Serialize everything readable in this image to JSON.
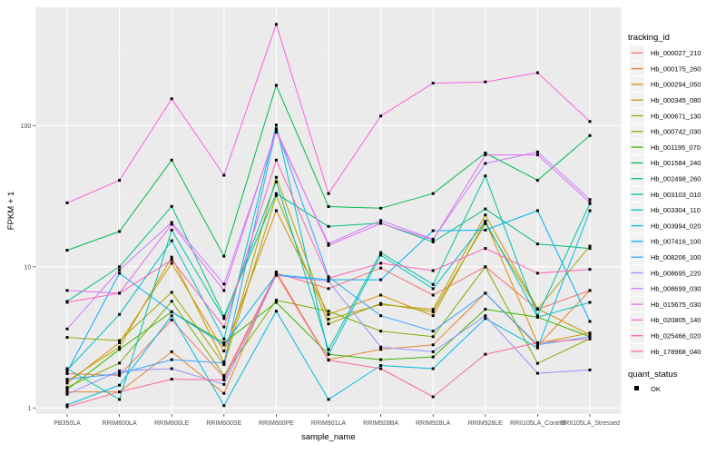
{
  "figure": {
    "background": "#FFFFFF",
    "panel_bg": "#EBEBEB",
    "grid_major_color": "#FFFFFF",
    "grid_minor_color": "#F5F5F5",
    "tick_color": "#333333",
    "tick_text_color": "#4D4D4D",
    "point_color": "#000000",
    "legend_key_bg": "#F2F2F2"
  },
  "axes": {
    "x_title": "sample_name",
    "y_title": "FPKM + 1",
    "y_ticks": [
      {
        "label": "1",
        "value": 1
      },
      {
        "label": "10",
        "value": 10
      },
      {
        "label": "100",
        "value": 100
      }
    ],
    "y_minor_values": [
      3.162,
      31.62,
      316.2
    ]
  },
  "legend": {
    "tracking_title": "tracking_id",
    "quant_title": "quant_status",
    "quant_items": [
      {
        "label": "OK",
        "shape": "square",
        "color": "#000000"
      }
    ]
  },
  "chart_data": {
    "type": "line",
    "title": "",
    "xlabel": "sample_name",
    "ylabel": "FPKM + 1",
    "y_scale": "log10",
    "ylim": [
      0.91,
      690
    ],
    "grid": true,
    "legend_position": "right",
    "point_shape": "filled-square-black",
    "categories": [
      "PB350LA",
      "RRIM600LA",
      "RRIM600LE",
      "RRIM600SE",
      "RRIM600PE",
      "RRIM901LA",
      "RRIM928BA",
      "RRIM928LA",
      "RRIM928LE",
      "RRII105LA_Control",
      "RRII105LA_Stressed"
    ],
    "series": [
      {
        "name": "Hb_000027_210",
        "color": "#F8766D",
        "values": [
          1.75,
          1.7,
          4.2,
          1.65,
          9.0,
          7.0,
          9.8,
          6.3,
          10.0,
          5.0,
          6.8
        ]
      },
      {
        "name": "Hb_000175_260",
        "color": "#EA8331",
        "values": [
          1.3,
          1.3,
          2.5,
          1.27,
          9.2,
          2.2,
          2.6,
          2.8,
          6.5,
          2.75,
          6.8
        ]
      },
      {
        "name": "Hb_000294_050",
        "color": "#D89000",
        "values": [
          1.5,
          2.9,
          10.6,
          2.53,
          25.0,
          4.6,
          6.3,
          4.5,
          21.0,
          2.86,
          3.4
        ]
      },
      {
        "name": "Hb_000345_080",
        "color": "#C09B00",
        "values": [
          1.55,
          2.7,
          11.7,
          2.12,
          43.0,
          4.25,
          5.4,
          5.0,
          23.3,
          5.05,
          3.3
        ]
      },
      {
        "name": "Hb_000671_130",
        "color": "#A3A500",
        "values": [
          3.16,
          3.0,
          6.6,
          2.03,
          32.0,
          3.94,
          5.5,
          4.8,
          20.2,
          5.0,
          14.0
        ]
      },
      {
        "name": "Hb_000742_030",
        "color": "#7CAE00",
        "values": [
          1.4,
          2.08,
          5.7,
          1.7,
          5.8,
          4.85,
          3.5,
          3.2,
          10.0,
          2.07,
          3.1
        ]
      },
      {
        "name": "Hb_001195_070",
        "color": "#39B600",
        "values": [
          1.35,
          2.6,
          4.8,
          2.9,
          5.6,
          2.4,
          2.2,
          2.3,
          5.0,
          4.4,
          3.2
        ]
      },
      {
        "name": "Hb_001584_240",
        "color": "#00BB4E",
        "values": [
          13.1,
          17.8,
          57.0,
          11.9,
          193.0,
          26.7,
          26.0,
          33.0,
          64.0,
          41.0,
          85.0
        ]
      },
      {
        "name": "Hb_002498_260",
        "color": "#00BF7D",
        "values": [
          5.7,
          10.0,
          26.8,
          4.46,
          33.0,
          19.3,
          20.4,
          15.0,
          25.7,
          14.5,
          13.5
        ]
      },
      {
        "name": "Hb_003103_010",
        "color": "#00C1A3",
        "values": [
          1.9,
          1.15,
          18.2,
          4.3,
          40.0,
          2.59,
          12.6,
          7.5,
          44.0,
          4.5,
          28.0
        ]
      },
      {
        "name": "Hb_003304_110",
        "color": "#00BFC4",
        "values": [
          1.85,
          4.6,
          15.3,
          3.08,
          101.0,
          2.4,
          12.1,
          7.0,
          21.0,
          4.4,
          5.6
        ]
      },
      {
        "name": "Hb_003994_020",
        "color": "#00BAE0",
        "values": [
          1.05,
          1.45,
          4.5,
          1.04,
          4.85,
          1.15,
          2.0,
          1.9,
          4.3,
          2.66,
          25.0
        ]
      },
      {
        "name": "Hb_007416_100",
        "color": "#00B0F6",
        "values": [
          1.8,
          9.0,
          4.8,
          2.8,
          8.8,
          8.1,
          8.1,
          18.0,
          18.2,
          25.0,
          4.1
        ]
      },
      {
        "name": "Hb_008206_100",
        "color": "#35A2FF",
        "values": [
          1.6,
          1.75,
          2.2,
          2.08,
          95.0,
          8.5,
          4.5,
          3.5,
          6.5,
          2.8,
          3.2
        ]
      },
      {
        "name": "Hb_008695_220",
        "color": "#9590FF",
        "values": [
          1.25,
          1.83,
          1.9,
          1.47,
          8.7,
          7.9,
          2.7,
          2.5,
          4.5,
          1.76,
          1.86
        ]
      },
      {
        "name": "Hb_008699_030",
        "color": "#C77CFF",
        "values": [
          3.63,
          9.5,
          20.6,
          7.55,
          90.0,
          14.6,
          21.3,
          15.7,
          54.0,
          65.0,
          30.0
        ]
      },
      {
        "name": "Hb_015675_030",
        "color": "#E76BF3",
        "values": [
          6.8,
          6.5,
          20.0,
          6.8,
          93.0,
          14.2,
          20.3,
          15.5,
          62.0,
          62.0,
          28.5
        ]
      },
      {
        "name": "Hb_020805_140",
        "color": "#FA62DB",
        "values": [
          28.4,
          41.0,
          155.0,
          44.5,
          522.0,
          33.0,
          117.0,
          200.0,
          204.0,
          237.0,
          107.0
        ]
      },
      {
        "name": "Hb_025466_020",
        "color": "#FF62BC",
        "values": [
          5.6,
          6.5,
          11.2,
          3.75,
          57.0,
          8.3,
          10.6,
          9.4,
          13.5,
          9.0,
          9.6
        ]
      },
      {
        "name": "Hb_178968_040",
        "color": "#FF6A98",
        "values": [
          1.02,
          1.3,
          1.6,
          1.58,
          8.9,
          2.18,
          1.9,
          1.2,
          2.4,
          2.9,
          3.08
        ]
      }
    ]
  }
}
